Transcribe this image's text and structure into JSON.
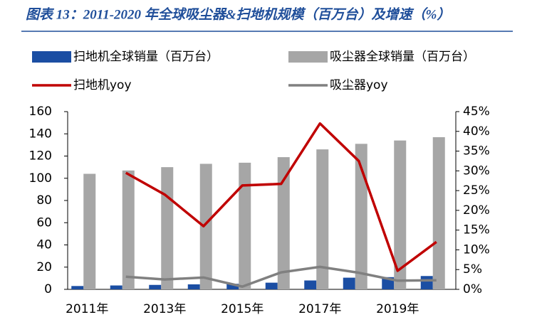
{
  "chart_data": {
    "type": "bar",
    "title": "图表 13：2011-2020 年全球吸尘器&扫地机规模（百万台）及增速（%）",
    "categories": [
      "2011年",
      null,
      "2013年",
      null,
      "2015年",
      null,
      "2017年",
      null,
      "2019年",
      null
    ],
    "series": [
      {
        "name": "扫地机全球销量（百万台）",
        "type": "bar",
        "color": "#1b4ea3",
        "values": [
          3,
          3.5,
          4,
          4.5,
          5,
          6,
          8,
          10.5,
          11,
          12
        ]
      },
      {
        "name": "吸尘器全球销量（百万台）",
        "type": "bar",
        "color": "#a6a6a6",
        "values": [
          104,
          107,
          110,
          113,
          114,
          119,
          126,
          131,
          134,
          137
        ]
      },
      {
        "name": "扫地机yoy",
        "type": "line",
        "axis": "y2",
        "color": "#c00000",
        "values": [
          null,
          29.5,
          24,
          16,
          26.3,
          26.7,
          42,
          32.5,
          4.7,
          12
        ]
      },
      {
        "name": "吸尘器yoy",
        "type": "line",
        "axis": "y2",
        "color": "#808080",
        "values": [
          null,
          3.2,
          2.5,
          3,
          0.7,
          4.3,
          5.7,
          4.2,
          2.2,
          2.3
        ]
      }
    ],
    "ylim": [
      0,
      160
    ],
    "yticks": [
      0,
      20,
      40,
      60,
      80,
      100,
      120,
      140,
      160
    ],
    "y2lim": [
      0,
      45
    ],
    "y2ticks": [
      {
        "value": 0,
        "label": "0%"
      },
      {
        "value": 5,
        "label": "5%"
      },
      {
        "value": 10,
        "label": "10%"
      },
      {
        "value": 15,
        "label": "15%"
      },
      {
        "value": 20,
        "label": "20%"
      },
      {
        "value": 25,
        "label": "25%"
      },
      {
        "value": 30,
        "label": "30%"
      },
      {
        "value": 35,
        "label": "35%"
      },
      {
        "value": 40,
        "label": "40%"
      },
      {
        "value": 45,
        "label": "45%"
      }
    ]
  }
}
